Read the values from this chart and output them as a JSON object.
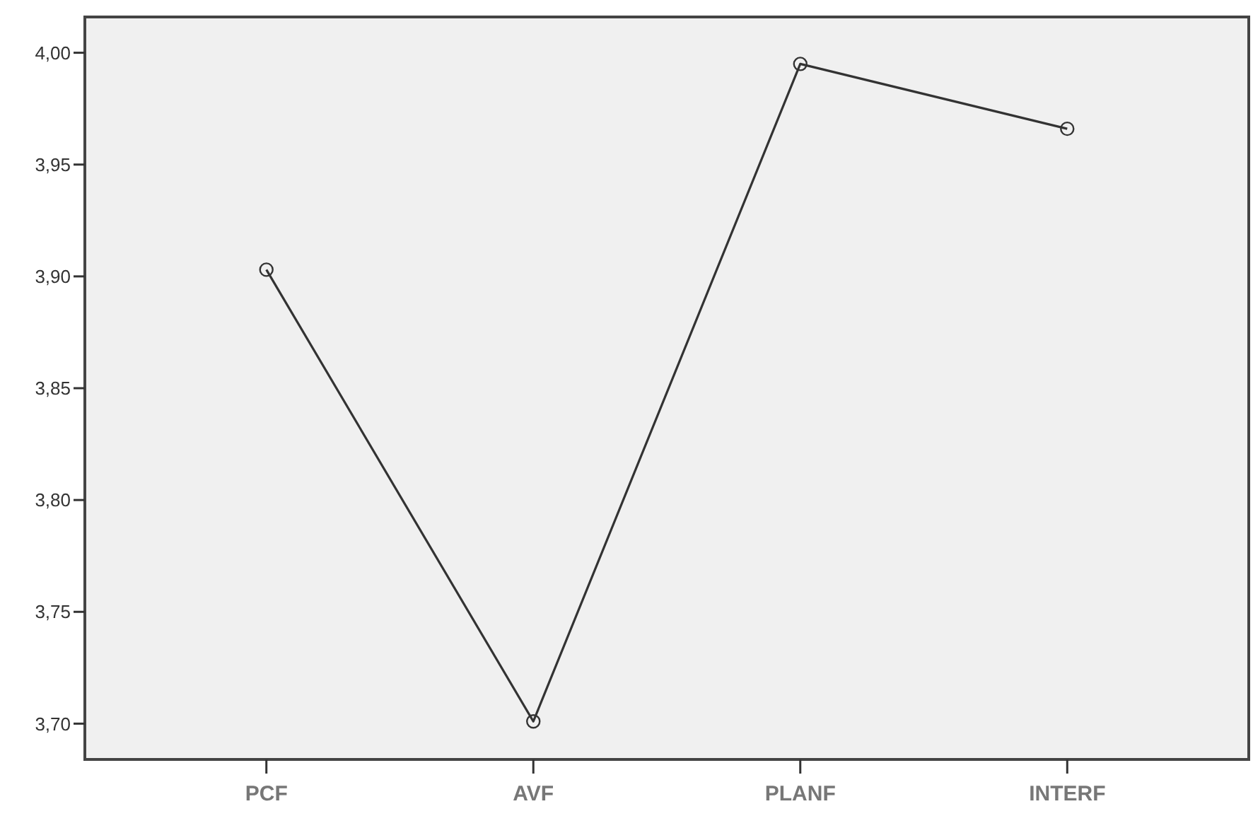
{
  "chart_data": {
    "type": "line",
    "categories": [
      "PCF",
      "AVF",
      "PLANF",
      "INTERF"
    ],
    "series": [
      {
        "color": "#333333",
        "values": [
          3.903,
          3.701,
          3.995,
          3.966
        ]
      }
    ],
    "ylim": [
      3.684,
      4.016
    ],
    "yticks": [
      {
        "value": 3.7,
        "label": "3,70"
      },
      {
        "value": 3.75,
        "label": "3,75"
      },
      {
        "value": 3.8,
        "label": "3,80"
      },
      {
        "value": 3.85,
        "label": "3,85"
      },
      {
        "value": 3.9,
        "label": "3,90"
      },
      {
        "value": 3.95,
        "label": "3,95"
      },
      {
        "value": 4.0,
        "label": "4,00"
      }
    ],
    "marker": "circle",
    "line_style": "solid"
  }
}
